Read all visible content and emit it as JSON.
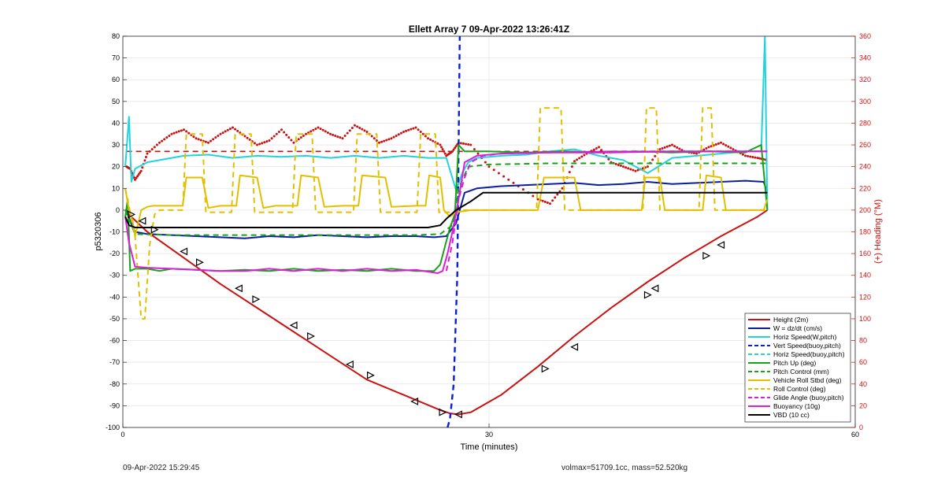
{
  "footer": {
    "left": "09-Apr-2022 15:29:45",
    "right": "volmax=51709.1cc, mass=52.520kg"
  },
  "chart_data": {
    "type": "line",
    "title": "Ellett Array 7 09-Apr-2022 13:26:41Z",
    "xlabel": "Time (minutes)",
    "ylabel": "p5320306",
    "y2label": "(+) Heading (°M)",
    "xlim": [
      0,
      60
    ],
    "ylim": [
      -100,
      80
    ],
    "y2lim": [
      0,
      360
    ],
    "xticks": [
      0,
      30,
      60
    ],
    "yticks": [
      80,
      70,
      60,
      50,
      40,
      30,
      20,
      10,
      0,
      -10,
      -20,
      -30,
      -40,
      -50,
      -60,
      -70,
      -80,
      -90,
      -100
    ],
    "y2ticks": [
      360,
      340,
      320,
      300,
      280,
      260,
      240,
      220,
      200,
      180,
      160,
      140,
      120,
      100,
      80,
      60,
      40,
      20,
      0
    ],
    "grid": true,
    "legend_position": "bottom-right",
    "series": [
      {
        "name": "Height (2m)",
        "color": "#cc1111",
        "style": "solid",
        "x": [
          0.3,
          2,
          5,
          8,
          11,
          14,
          17,
          20,
          23,
          26,
          26.8,
          27.5,
          28.5,
          31,
          34,
          37,
          40,
          43,
          46,
          49,
          52,
          52.8
        ],
        "y": [
          -1,
          -10,
          -22,
          -34,
          -45,
          -56,
          -67,
          -78,
          -85,
          -92,
          -93.5,
          -94,
          -93,
          -85,
          -72,
          -58,
          -45,
          -33,
          -22,
          -12,
          -3,
          0
        ]
      },
      {
        "name": "W = dz/dt (cm/s)",
        "color": "#0a1fa0",
        "style": "solid",
        "x": [
          0.3,
          0.6,
          1,
          2,
          4,
          6,
          8,
          10,
          12,
          14,
          16,
          18,
          20,
          22,
          24,
          25.5,
          26.5,
          27.3,
          28,
          29,
          31,
          33,
          35,
          37,
          39,
          41,
          43,
          45,
          47,
          49,
          51,
          52.5,
          52.8
        ],
        "y": [
          0,
          -5,
          -10,
          -11,
          -11.5,
          -12,
          -12.5,
          -13,
          -12,
          -12.5,
          -11.5,
          -12,
          -12.5,
          -12,
          -12,
          -12.5,
          -12,
          -6,
          8,
          10,
          11,
          11.5,
          12,
          12.5,
          11.5,
          12,
          13,
          12,
          12.5,
          13,
          13.5,
          13,
          8
        ]
      },
      {
        "name": "Horiz Speed(W,pitch)",
        "color": "#22d3de",
        "style": "solid",
        "x": [
          0.2,
          0.5,
          0.7,
          1,
          2,
          3,
          4,
          5,
          7,
          9,
          11,
          13,
          15,
          17,
          19,
          21,
          23,
          25,
          26.5,
          27.3,
          27.8,
          28.3,
          29,
          31,
          33,
          35,
          37,
          39,
          41,
          43,
          45,
          47,
          49,
          51,
          52.3,
          52.6,
          52.8
        ],
        "y": [
          20,
          43,
          13,
          19,
          22,
          23,
          24,
          25,
          25.5,
          24,
          25,
          24.5,
          25,
          24,
          25,
          24,
          25,
          24,
          24,
          9,
          17,
          22,
          24,
          25,
          25.5,
          27,
          28,
          25,
          23,
          17,
          24,
          25,
          26,
          27,
          27,
          80,
          0
        ]
      },
      {
        "name": "Vert Speed(buoy,pitch)",
        "color": "#0a1fd0",
        "style": "dash",
        "x": [
          26.6,
          26.8,
          27.1,
          27.4,
          27.6
        ],
        "y": [
          -100,
          -96,
          -80,
          -30,
          80
        ]
      },
      {
        "name": "Horiz Speed(buoy,pitch)",
        "color": "#22d3de",
        "style": "dash",
        "x": [],
        "y": []
      },
      {
        "name": "Pitch Up (deg)",
        "color": "#17a317",
        "style": "solid",
        "x": [
          0.2,
          0.4,
          0.6,
          1,
          2,
          3,
          4,
          6,
          8,
          10,
          12,
          14,
          16,
          18,
          20,
          22,
          24,
          25.5,
          26,
          26.8,
          27.2,
          27.5,
          28,
          30,
          33,
          36,
          39,
          42,
          45,
          48,
          51,
          52.3,
          52.8
        ],
        "y": [
          -3,
          5,
          -28,
          -27,
          -27,
          -28,
          -27,
          -27.5,
          -28,
          -27.5,
          -28,
          -27,
          -28,
          -27.5,
          -28,
          -27,
          -28,
          -28,
          -25,
          -8,
          -2,
          30,
          27,
          27,
          26.5,
          27,
          26.5,
          27,
          26.5,
          27,
          26.5,
          30,
          0
        ]
      },
      {
        "name": "Pitch Control (mm)",
        "color": "#17a317",
        "style": "dash",
        "x": [
          0.2,
          1,
          4,
          8,
          12,
          16,
          20,
          24,
          26,
          27,
          27.5,
          28.3,
          30,
          35,
          40,
          45,
          50,
          52.8
        ],
        "y": [
          0,
          -11,
          -11.5,
          -11.5,
          -11.5,
          -11.5,
          -11.5,
          -11.5,
          -11,
          -7,
          10,
          20,
          21,
          21.5,
          21.5,
          21.5,
          21.5,
          21.5
        ]
      },
      {
        "name": "Vehicle Roll Stbd (deg)",
        "color": "#e2c000",
        "style": "solid",
        "x": [
          0.2,
          0.5,
          0.8,
          1,
          1.3,
          1.5,
          2,
          2.5,
          3,
          4,
          4.9,
          5.2,
          6.5,
          7,
          8,
          9.3,
          9.6,
          11,
          11.5,
          12.5,
          14.3,
          14.6,
          16,
          16.5,
          18,
          19.3,
          19.6,
          21.5,
          22,
          24,
          24.8,
          25.1,
          26,
          26.3,
          26.8,
          27.3,
          28.5,
          31,
          34,
          34.5,
          37,
          37.5,
          42.5,
          42.8,
          44,
          44.4,
          47.5,
          47.8,
          49,
          49.4,
          52.5,
          52.8
        ],
        "y": [
          10,
          0,
          -5,
          -12,
          -5,
          0,
          1.5,
          2,
          2,
          2,
          2,
          15,
          15,
          1,
          2,
          2,
          16,
          15,
          1,
          2,
          2,
          16,
          15,
          1.5,
          2,
          2,
          16,
          15,
          1.5,
          2,
          2,
          16,
          15,
          0,
          -3,
          -1,
          0,
          0,
          0,
          15,
          15,
          0,
          0,
          15,
          15,
          0,
          0,
          16,
          15,
          0,
          0,
          5
        ]
      },
      {
        "name": "Roll Control (deg)",
        "color": "#e2c000",
        "style": "dash",
        "x": [
          0.2,
          1,
          1.5,
          1.8,
          2.2,
          2.6,
          3,
          4.9,
          5.2,
          6.5,
          6.8,
          8.9,
          9.2,
          10.5,
          10.8,
          13.9,
          14.2,
          15.5,
          15.8,
          18.9,
          19.2,
          20.8,
          21.1,
          24.1,
          24.4,
          25.6,
          25.9,
          27,
          28,
          33.9,
          34.2,
          35.9,
          36.2,
          42.6,
          42.9,
          43.7,
          44,
          47.2,
          47.5,
          48.2,
          48.5,
          52.8
        ],
        "y": [
          10,
          -12,
          -50,
          -50,
          -16,
          -2,
          0,
          0,
          35,
          35,
          -1,
          -1,
          35,
          35,
          -1,
          -1,
          35,
          35,
          -1,
          -1,
          35,
          35,
          -1,
          -1,
          35,
          35,
          -1,
          -1,
          0,
          0,
          47,
          47,
          0,
          0,
          47,
          47,
          0,
          0,
          47,
          47,
          0,
          0
        ]
      },
      {
        "name": "Glide Angle (buoy,pitch)",
        "color": "#d91ed9",
        "style": "dash",
        "x": [
          26.5,
          27,
          27.5,
          28,
          28.5,
          29.5,
          31,
          35,
          40,
          45,
          50,
          52.8
        ],
        "y": [
          -28,
          -15,
          5,
          15,
          22,
          25,
          26,
          26.5,
          27,
          27,
          27,
          27
        ]
      },
      {
        "name": "Buoyancy (10g)",
        "color": "#d91ed9",
        "style": "solid",
        "x": [
          0.2,
          0.5,
          1,
          2,
          4,
          6,
          8,
          10,
          12,
          14,
          16,
          18,
          20,
          22,
          24,
          25.8,
          26.2,
          26.6,
          27,
          27.5,
          28,
          29,
          31,
          35,
          40,
          45,
          50,
          52.8
        ],
        "y": [
          -3,
          -15,
          -26,
          -26.5,
          -27,
          -27.5,
          -28,
          -28,
          -27,
          -28,
          -27,
          -28,
          -27,
          -28,
          -27.5,
          -29,
          -28,
          -20,
          -10,
          5,
          22,
          25,
          26,
          26.5,
          26.5,
          27,
          27,
          27
        ]
      },
      {
        "name": "VBD (10 cc)",
        "color": "#000000",
        "style": "solid",
        "x": [
          0.2,
          0.5,
          1,
          2,
          5,
          10,
          15,
          20,
          25,
          26,
          26.5,
          27.3,
          28.5,
          29.5,
          31,
          35,
          40,
          45,
          50,
          52.8
        ],
        "y": [
          -3,
          -7,
          -8,
          -8,
          -8,
          -8,
          -8,
          -8,
          -8,
          -7,
          -4,
          0,
          4,
          8,
          8,
          8,
          8,
          8,
          8,
          8
        ]
      }
    ],
    "heading_series": {
      "axis": "right",
      "color": "#cc1111",
      "marker": "dot",
      "x": [
        0.3,
        0.6,
        1,
        1.5,
        2,
        3,
        4,
        5,
        6,
        7,
        8,
        9,
        10,
        11,
        12,
        13,
        14,
        15,
        16,
        17,
        18,
        19,
        20,
        21,
        22,
        23,
        24,
        25,
        26,
        26.5,
        27,
        27.5,
        28.5,
        30,
        32,
        34,
        35,
        36,
        37,
        38,
        39,
        40,
        41,
        42,
        43,
        44,
        45,
        46,
        47,
        48,
        49,
        50,
        51,
        52,
        52.8
      ],
      "y": [
        240,
        238,
        228,
        236,
        252,
        262,
        270,
        274,
        266,
        262,
        270,
        276,
        268,
        260,
        264,
        274,
        262,
        270,
        276,
        270,
        266,
        278,
        272,
        262,
        266,
        272,
        276,
        266,
        260,
        250,
        254,
        262,
        260,
        240,
        225,
        210,
        206,
        220,
        245,
        252,
        258,
        244,
        240,
        236,
        240,
        256,
        260,
        254,
        252,
        258,
        262,
        256,
        250,
        248,
        246
      ]
    },
    "heading_mean": {
      "axis": "right",
      "color": "#cc1111",
      "style": "dash",
      "value": 254
    },
    "height_markers": {
      "color": "#000000",
      "x": [
        0.7,
        1.6,
        2.6,
        5,
        6.3,
        9.5,
        10.9,
        14,
        15.4,
        18.6,
        20.3,
        23.9,
        26.2,
        27.5,
        34.6,
        37,
        43,
        43.6,
        47.8,
        49
      ],
      "y": [
        -2,
        -5,
        -9,
        -19,
        -24,
        -36,
        -41,
        -53,
        -58,
        -71,
        -76,
        -88,
        -93,
        -94,
        -73,
        -63,
        -39,
        -36,
        -21,
        -16
      ]
    }
  }
}
